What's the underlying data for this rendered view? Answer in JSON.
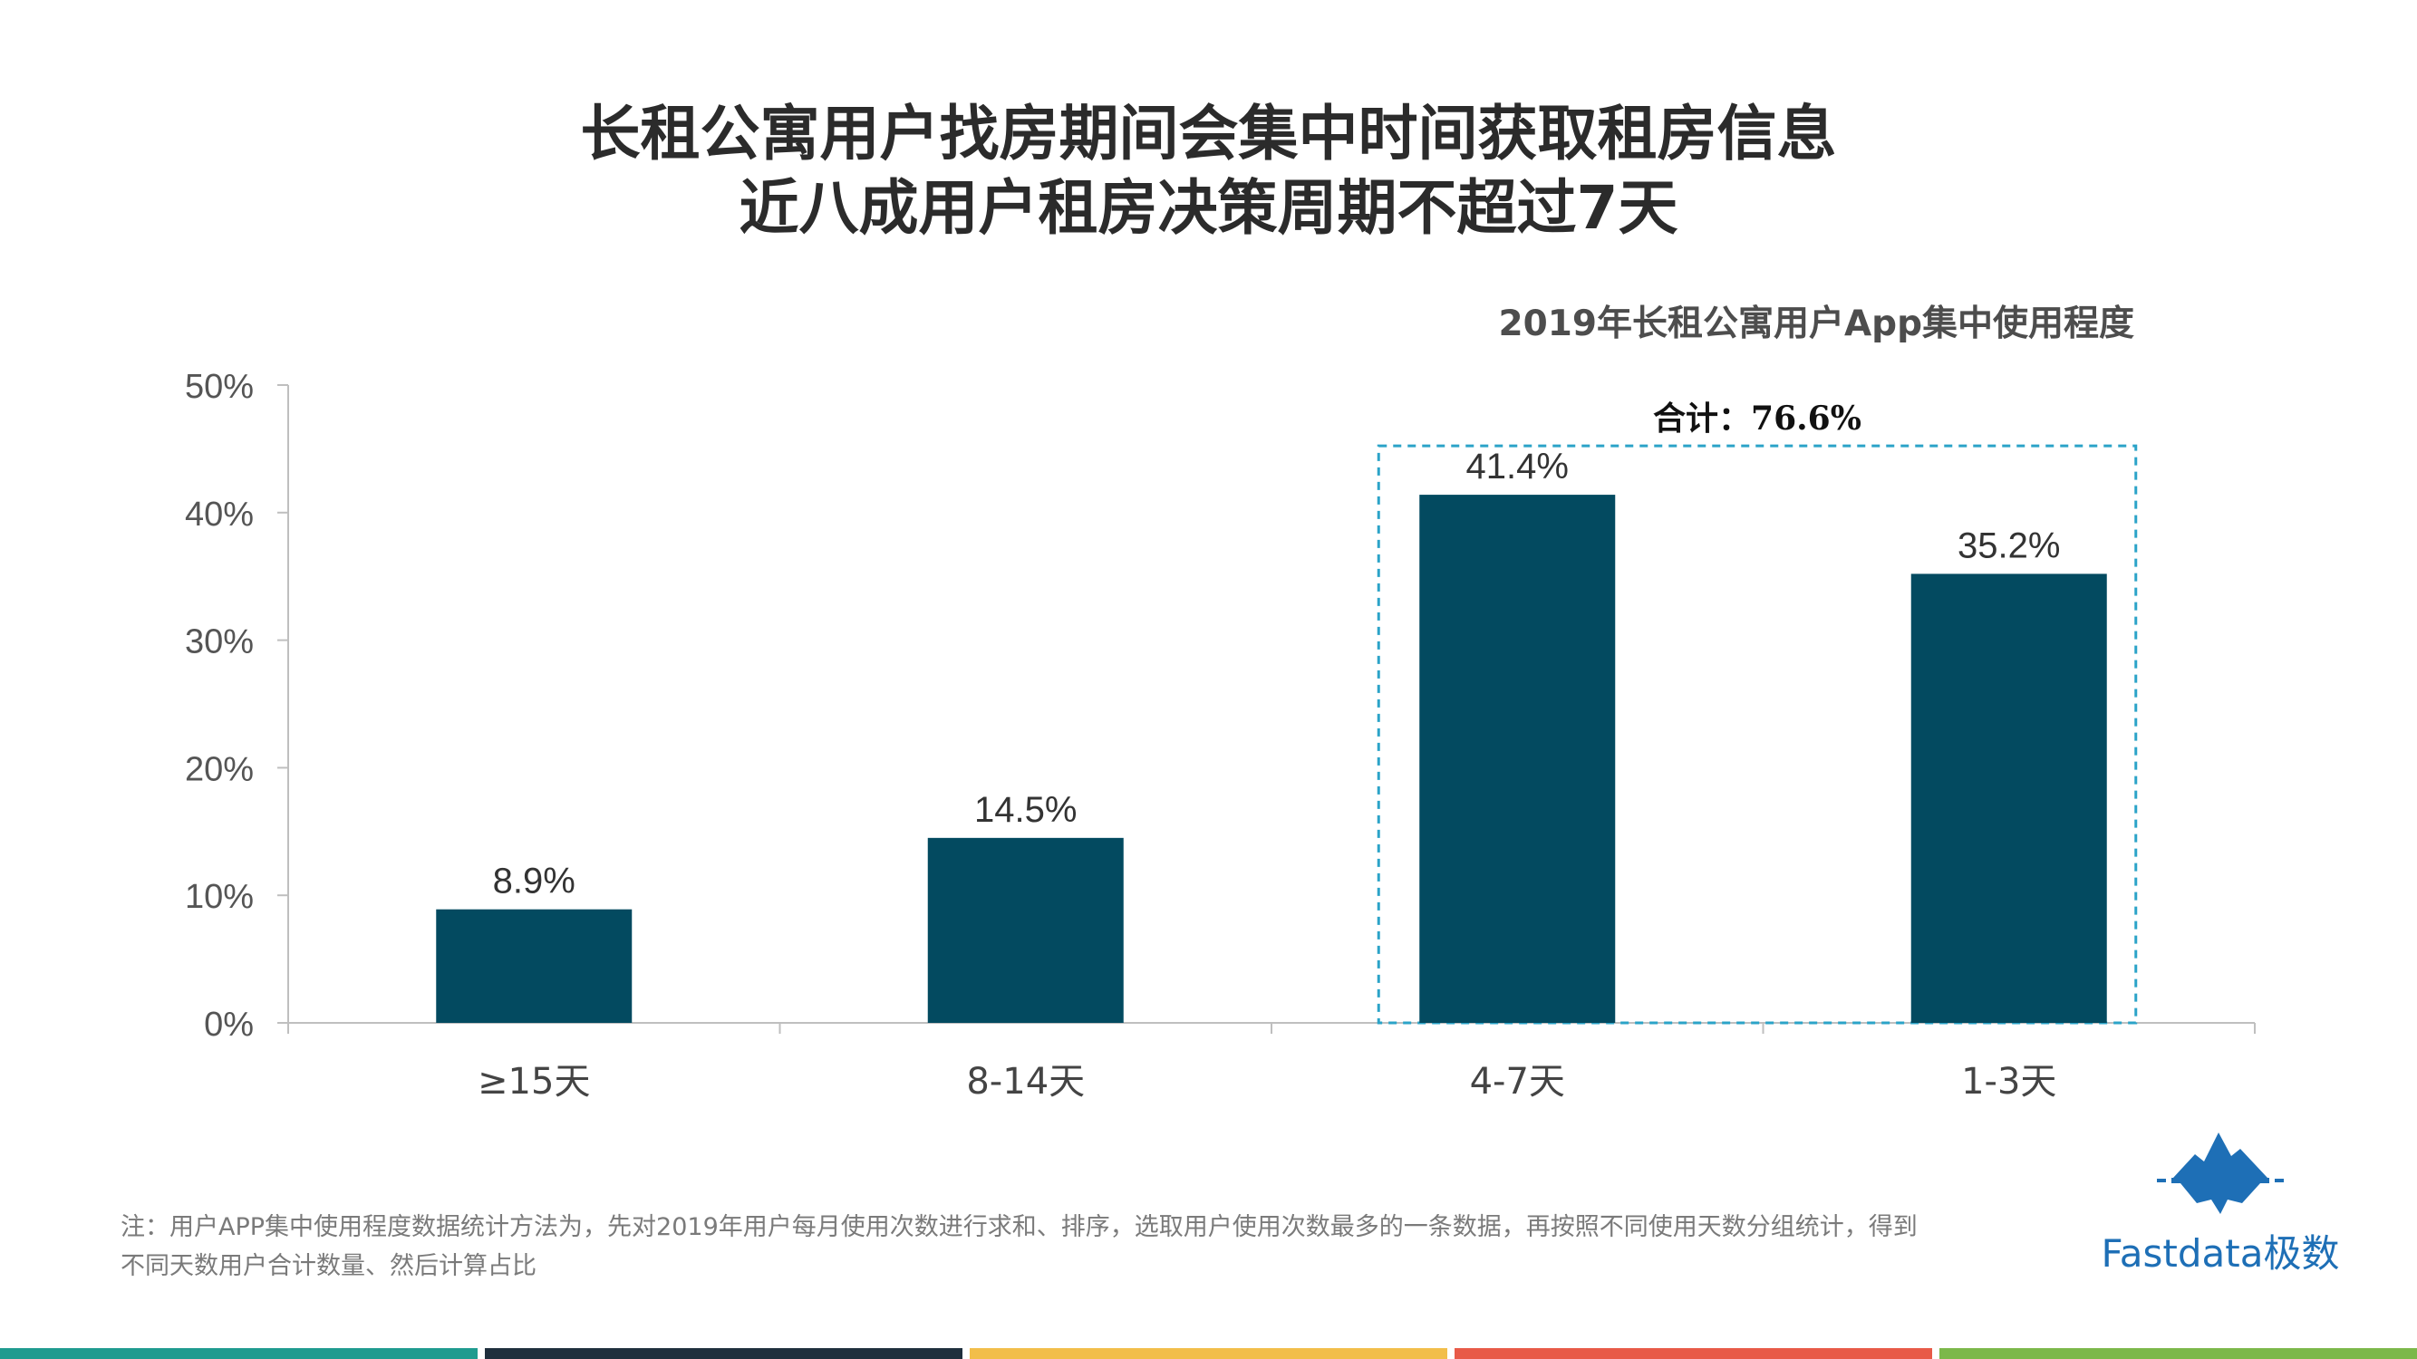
{
  "headline": {
    "line1": "长租公寓用户找房期间会集中时间获取租房信息",
    "line2": "近八成用户租房决策周期不超过7天"
  },
  "chart_data": {
    "type": "bar",
    "title": "2019年长租公寓用户App集中使用程度",
    "categories": [
      "≥15天",
      "8-14天",
      "4-7天",
      "1-3天"
    ],
    "values": [
      8.9,
      14.5,
      41.4,
      35.2
    ],
    "value_labels": [
      "8.9%",
      "14.5%",
      "41.4%",
      "35.2%"
    ],
    "ylim": [
      0,
      50
    ],
    "yticks": [
      0,
      10,
      20,
      30,
      40,
      50
    ],
    "ytick_labels": [
      "0%",
      "10%",
      "20%",
      "30%",
      "40%",
      "50%"
    ],
    "xlabel": "",
    "ylabel": "",
    "grid": false,
    "bar_color": "#034a60",
    "highlight": {
      "from_index": 2,
      "to_index": 3,
      "label": "合计：76.6%",
      "color": "#2ba3c8"
    }
  },
  "note": {
    "line1": "注：用户APP集中使用程度数据统计方法为，先对2019年用户每月使用次数进行求和、排序，选取用户使用次数最多的一条数据，再按照不同使用天数分组统计，得到",
    "line2": "不同天数用户合计数量、然后计算占比"
  },
  "brand": {
    "name": "Fastdata极数",
    "logo_icon": "iceberg-logo-icon",
    "color": "#1e6fb6"
  },
  "footer_stripe": {
    "colors": [
      "#1f9b8f",
      "#1f2f3d",
      "#f2be4a",
      "#e85a48",
      "#7cb84a"
    ]
  }
}
